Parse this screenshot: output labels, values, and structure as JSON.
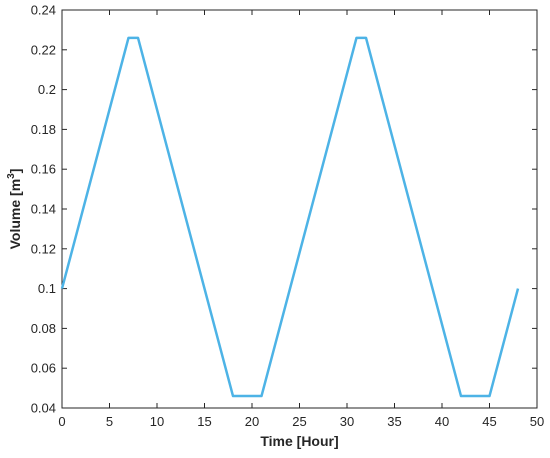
{
  "chart_data": {
    "type": "line",
    "xlabel": "Time [Hour]",
    "ylabel_main": "Volume [m",
    "ylabel_sup": "3",
    "ylabel_end": "]",
    "xlim": [
      0,
      50
    ],
    "ylim": [
      0.04,
      0.24
    ],
    "xticks": [
      0,
      5,
      10,
      15,
      20,
      25,
      30,
      35,
      40,
      45,
      50
    ],
    "yticks": [
      0.04,
      0.06,
      0.08,
      0.1,
      0.12,
      0.14,
      0.16,
      0.18,
      0.2,
      0.22,
      0.24
    ],
    "xtick_labels": [
      "0",
      "5",
      "10",
      "15",
      "20",
      "25",
      "30",
      "35",
      "40",
      "45",
      "50"
    ],
    "ytick_labels": [
      "0.04",
      "0.06",
      "0.08",
      "0.1",
      "0.12",
      "0.14",
      "0.16",
      "0.18",
      "0.2",
      "0.22",
      "0.24"
    ],
    "grid": false,
    "line_color": "#4db3e6",
    "series": [
      {
        "x": [
          0,
          7,
          8,
          18,
          21,
          31,
          32,
          42,
          45,
          48
        ],
        "y": [
          0.1,
          0.226,
          0.226,
          0.046,
          0.046,
          0.226,
          0.226,
          0.046,
          0.046,
          0.1
        ]
      }
    ]
  }
}
